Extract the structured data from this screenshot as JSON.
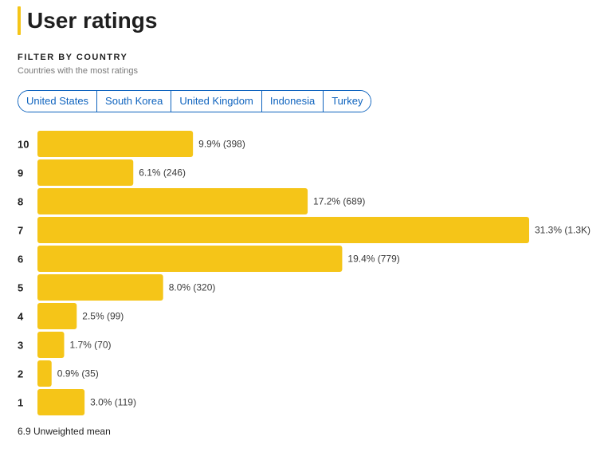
{
  "header": {
    "title": "User ratings",
    "accent_color": "#f5c518"
  },
  "filter": {
    "heading": "FILTER BY COUNTRY",
    "subheading": "Countries with the most ratings",
    "countries": [
      "United States",
      "South Korea",
      "United Kingdom",
      "Indonesia",
      "Turkey"
    ],
    "link_color": "#0e63be"
  },
  "chart_data": {
    "type": "bar",
    "orientation": "horizontal",
    "categories": [
      "10",
      "9",
      "8",
      "7",
      "6",
      "5",
      "4",
      "3",
      "2",
      "1"
    ],
    "values": [
      9.9,
      6.1,
      17.2,
      31.3,
      19.4,
      8.0,
      2.5,
      1.7,
      0.9,
      3.0
    ],
    "value_labels": [
      "9.9% (398)",
      "6.1% (246)",
      "17.2% (689)",
      "31.3% (1.3K)",
      "19.4% (779)",
      "8.0% (320)",
      "2.5% (99)",
      "1.7% (70)",
      "0.9% (35)",
      "3.0% (119)"
    ],
    "bar_color": "#f5c518",
    "xlim": [
      0,
      31.3
    ]
  },
  "footer": {
    "mean_text": "6.9 Unweighted mean"
  }
}
